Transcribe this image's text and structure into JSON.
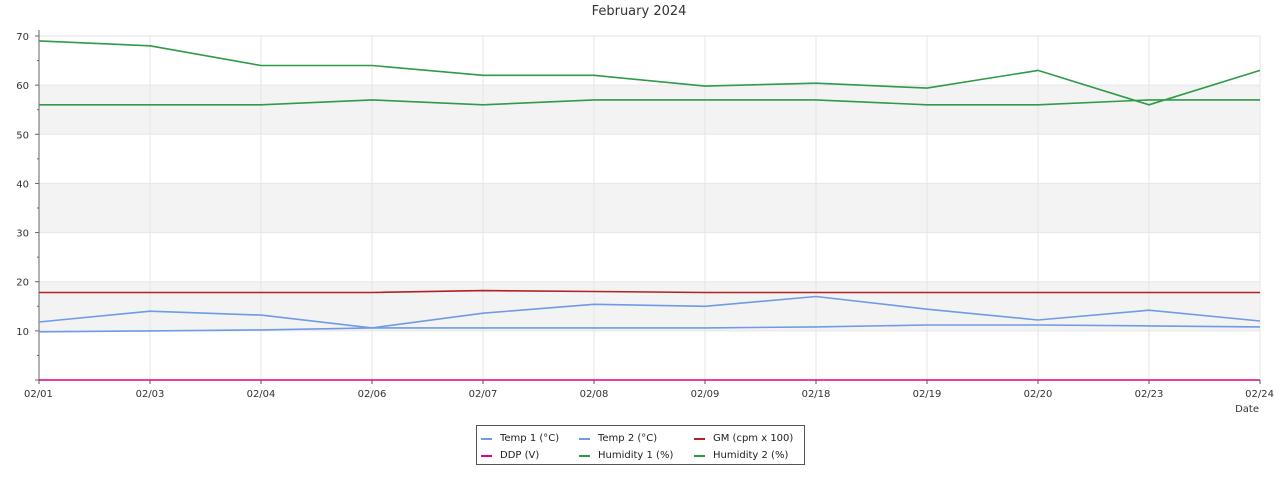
{
  "chart_data": {
    "type": "line",
    "title": "February 2024",
    "xlabel": "Date",
    "ylabel": "",
    "ylim": [
      0,
      70
    ],
    "yticks": [
      10,
      20,
      30,
      40,
      50,
      60,
      70
    ],
    "grid": true,
    "legend_position": "bottom-center",
    "categories": [
      "02/01",
      "02/03",
      "02/04",
      "02/06",
      "02/07",
      "02/08",
      "02/09",
      "02/18",
      "02/19",
      "02/20",
      "02/23",
      "02/24"
    ],
    "series": [
      {
        "name": "Temp 1 (°C)",
        "color": "#6e9be8",
        "values": [
          9.8,
          10.0,
          10.2,
          10.6,
          10.6,
          10.6,
          10.6,
          10.8,
          11.2,
          11.2,
          11.0,
          10.8
        ]
      },
      {
        "name": "Temp 2 (°C)",
        "color": "#6e9be8",
        "values": [
          11.8,
          14.0,
          13.2,
          10.6,
          13.6,
          15.4,
          15.0,
          17.0,
          14.4,
          12.2,
          14.2,
          12.0
        ]
      },
      {
        "name": "GM (cpm x 100)",
        "color": "#b22222",
        "values": [
          17.8,
          17.8,
          17.8,
          17.8,
          18.2,
          18.0,
          17.8,
          17.8,
          17.8,
          17.8,
          17.8,
          17.8
        ]
      },
      {
        "name": "DDP (V)",
        "color": "#e0007a",
        "values": [
          0,
          0,
          0,
          0,
          0,
          0,
          0,
          0,
          0,
          0,
          0,
          0
        ]
      },
      {
        "name": "Humidity 1 (%)",
        "color": "#2e9b47",
        "values": [
          69.0,
          68.0,
          64.0,
          64.0,
          62.0,
          62.0,
          59.8,
          60.4,
          59.4,
          63.0,
          56.0,
          63.0
        ]
      },
      {
        "name": "Humidity 2 (%)",
        "color": "#2e9b47",
        "values": [
          56.0,
          56.0,
          56.0,
          57.0,
          56.0,
          57.0,
          57.0,
          57.0,
          56.0,
          56.0,
          57.0,
          57.0
        ]
      }
    ]
  }
}
